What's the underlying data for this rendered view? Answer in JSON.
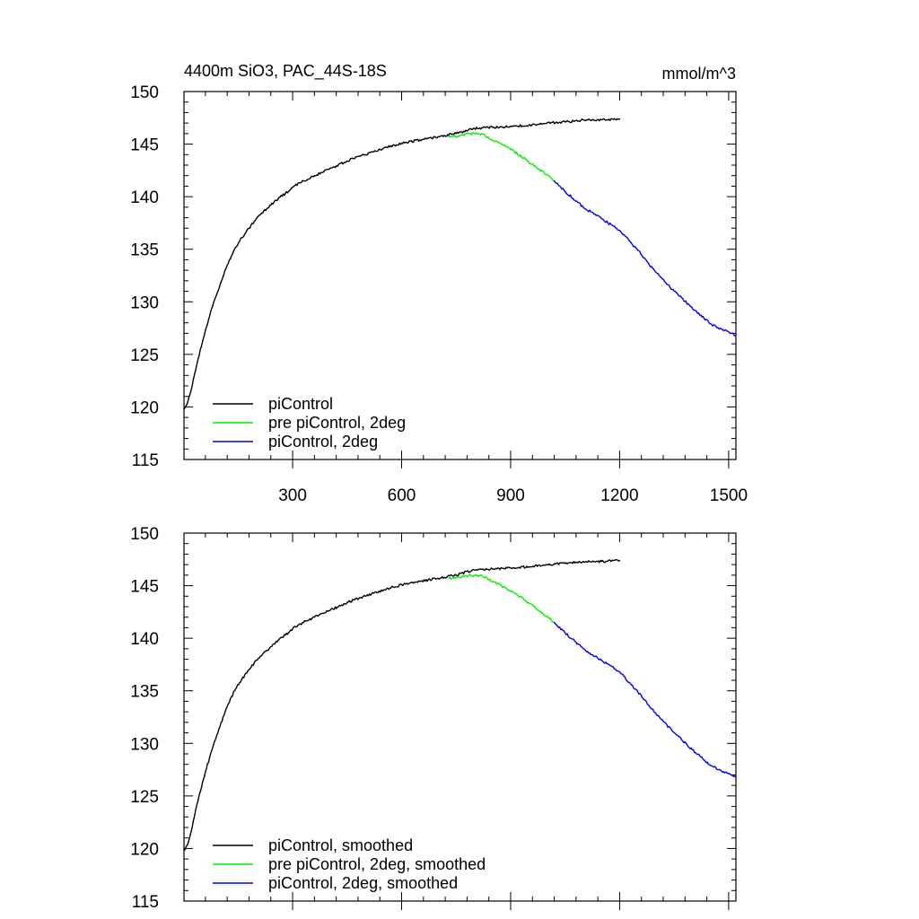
{
  "chart_data": [
    {
      "type": "line",
      "title": "4400m SiO3, PAC_44S-18S",
      "units": "mmol/m^3",
      "xlabel": "",
      "ylabel": "",
      "xlim": [
        1,
        1520
      ],
      "ylim": [
        115,
        150
      ],
      "x_ticks": [
        300,
        600,
        900,
        1200,
        1500
      ],
      "y_ticks": [
        115,
        120,
        125,
        130,
        135,
        140,
        145,
        150
      ],
      "x_tick_labels_visible": true,
      "legend_position": "bottom-left",
      "series": [
        {
          "name": "piControl",
          "color": "#000000",
          "x": [
            1,
            10,
            20,
            30,
            40,
            60,
            80,
            100,
            120,
            140,
            160,
            180,
            200,
            220,
            240,
            260,
            280,
            300,
            330,
            360,
            400,
            450,
            500,
            550,
            600,
            650,
            700,
            750,
            800,
            850,
            900,
            950,
            1000,
            1050,
            1100,
            1150,
            1200
          ],
          "y": [
            119.8,
            120.3,
            121.5,
            123.1,
            124.6,
            127.3,
            129.6,
            131.6,
            133.5,
            135.0,
            136.1,
            137.0,
            137.9,
            138.6,
            139.2,
            139.8,
            140.3,
            140.9,
            141.5,
            142.0,
            142.6,
            143.4,
            144.0,
            144.6,
            145.1,
            145.4,
            145.7,
            146.0,
            146.5,
            146.6,
            146.7,
            146.8,
            147.0,
            147.1,
            147.3,
            147.3,
            147.4
          ]
        },
        {
          "name": "pre piControl, 2deg",
          "color": "#00ee00",
          "x": [
            730,
            760,
            790,
            820,
            850,
            880,
            910,
            940,
            970,
            1000,
            1020
          ],
          "y": [
            145.7,
            145.8,
            146.0,
            146.0,
            145.4,
            144.9,
            144.3,
            143.6,
            142.8,
            142.1,
            141.5
          ]
        },
        {
          "name": "piControl, 2deg",
          "color": "#0000ee",
          "x": [
            1020,
            1050,
            1100,
            1150,
            1200,
            1250,
            1300,
            1350,
            1400,
            1450,
            1480,
            1520
          ],
          "y": [
            141.5,
            140.5,
            139.0,
            137.9,
            136.8,
            134.9,
            132.8,
            131.0,
            129.4,
            127.9,
            127.4,
            126.8
          ]
        }
      ]
    },
    {
      "type": "line",
      "title": "",
      "units": "",
      "xlabel": "",
      "ylabel": "",
      "xlim": [
        1,
        1520
      ],
      "ylim": [
        115,
        150
      ],
      "x_ticks": [
        300,
        600,
        900,
        1200,
        1500
      ],
      "y_ticks": [
        115,
        120,
        125,
        130,
        135,
        140,
        145,
        150
      ],
      "x_tick_labels_visible": false,
      "legend_position": "bottom-left",
      "series": [
        {
          "name": "piControl, smoothed",
          "color": "#000000",
          "x": [
            1,
            10,
            20,
            30,
            40,
            60,
            80,
            100,
            120,
            140,
            160,
            180,
            200,
            220,
            240,
            260,
            280,
            300,
            330,
            360,
            400,
            450,
            500,
            550,
            600,
            650,
            700,
            750,
            800,
            850,
            900,
            950,
            1000,
            1050,
            1100,
            1150,
            1200
          ],
          "y": [
            119.8,
            120.3,
            121.5,
            123.1,
            124.6,
            127.3,
            129.6,
            131.6,
            133.5,
            135.0,
            136.1,
            137.0,
            137.9,
            138.6,
            139.2,
            139.8,
            140.3,
            140.9,
            141.5,
            142.0,
            142.6,
            143.4,
            144.0,
            144.6,
            145.1,
            145.4,
            145.7,
            146.0,
            146.5,
            146.6,
            146.7,
            146.8,
            147.0,
            147.1,
            147.3,
            147.3,
            147.4
          ]
        },
        {
          "name": "pre piControl, 2deg, smoothed",
          "color": "#00ee00",
          "x": [
            730,
            760,
            790,
            820,
            850,
            880,
            910,
            940,
            970,
            1000,
            1020
          ],
          "y": [
            145.7,
            145.8,
            146.0,
            146.0,
            145.4,
            144.9,
            144.3,
            143.6,
            142.8,
            142.1,
            141.5
          ]
        },
        {
          "name": "piControl, 2deg, smoothed",
          "color": "#0000ee",
          "x": [
            1020,
            1050,
            1100,
            1150,
            1200,
            1250,
            1300,
            1350,
            1400,
            1450,
            1480,
            1520
          ],
          "y": [
            141.5,
            140.5,
            139.0,
            137.9,
            136.8,
            134.9,
            132.8,
            131.0,
            129.4,
            127.9,
            127.4,
            126.8
          ]
        }
      ]
    }
  ]
}
